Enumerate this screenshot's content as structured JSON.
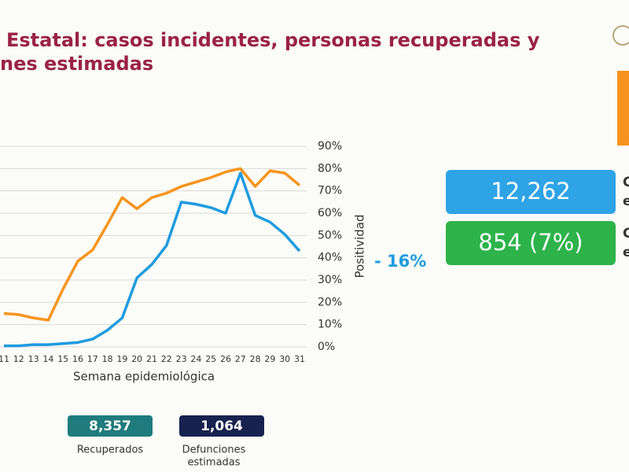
{
  "header": {
    "title_lines": [
      "Estatal: casos incidentes, personas recuperadas y",
      "nes estimadas"
    ]
  },
  "chart_data": {
    "type": "line",
    "categories": [
      "11",
      "12",
      "13",
      "14",
      "15",
      "16",
      "17",
      "18",
      "19",
      "20",
      "21",
      "22",
      "23",
      "24",
      "25",
      "26",
      "27",
      "28",
      "29",
      "30",
      "31"
    ],
    "series": [
      {
        "color": "#f7941d",
        "values": [
          15,
          14.5,
          13,
          12,
          26,
          38.5,
          43.5,
          55,
          67,
          62,
          67,
          69,
          72,
          74,
          76,
          78.5,
          80,
          72,
          79,
          78,
          72.5
        ]
      },
      {
        "color": "#1e9be0",
        "values": [
          0.5,
          0.5,
          1,
          1,
          1.5,
          2,
          3.5,
          7.5,
          13,
          31,
          37,
          45.5,
          65,
          64,
          62.5,
          60,
          78,
          59,
          56,
          50.5,
          43
        ]
      }
    ],
    "ylim": [
      0,
      90
    ],
    "yticks": [
      {
        "value": 0,
        "label": "0%"
      },
      {
        "value": 10,
        "label": "10%"
      },
      {
        "value": 20,
        "label": "20%"
      },
      {
        "value": 30,
        "label": "30%"
      },
      {
        "value": 40,
        "label": "40%"
      },
      {
        "value": 50,
        "label": "50%"
      },
      {
        "value": 60,
        "label": "60%"
      },
      {
        "value": 70,
        "label": "70%"
      },
      {
        "value": 80,
        "label": "80%"
      },
      {
        "value": 90,
        "label": "90%"
      }
    ],
    "y_axis_label": "Positividad",
    "x_axis_label": "Semana epidemiológica",
    "annotation": "- 16%",
    "annotation_color": "#1e9be0",
    "grid": true
  },
  "stats": [
    {
      "value": "12,262",
      "color": "#2ea3e6"
    },
    {
      "value": "854 (7%)",
      "color": "#2db34a"
    }
  ],
  "totals": [
    {
      "value": "8,357",
      "label_lines": [
        "Recuperados"
      ],
      "color": "#1f7b7c"
    },
    {
      "value": "1,064",
      "label_lines": [
        "Defunciones",
        "estimadas"
      ],
      "color": "#17224f"
    }
  ],
  "edge_letters": [
    "C",
    "e",
    "C",
    "e"
  ]
}
